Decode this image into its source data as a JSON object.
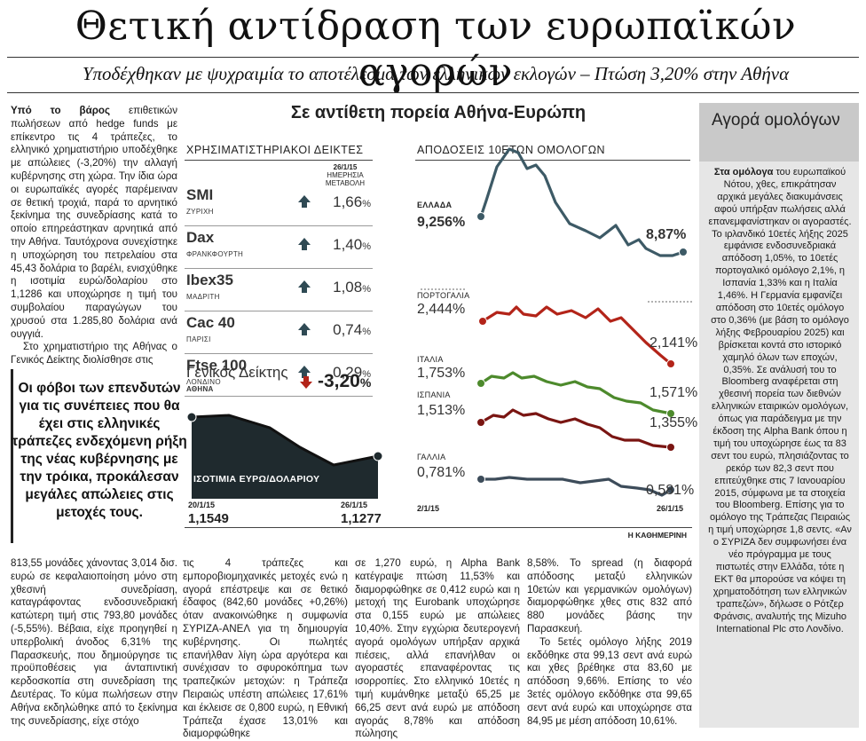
{
  "headline": "Θετική αντίδραση των ευρωπαϊκών αγορών",
  "subheadline": "Υποδέχθηκαν με ψυχραιμία το αποτέλεσμα των ελληνικών εκλογών – Πτώση 3,20% στην Αθήνα",
  "col1": {
    "lead": "Υπό το βάρος",
    "p1": " επιθετικών πωλήσεων από hedge funds με επίκεντρο τις 4 τράπεζες, το ελληνικό χρηματιστήριο υποδέχθηκε με απώλειες (-3,20%) την αλλαγή κυβέρνησης στη χώρα. Την ίδια ώρα οι ευρωπαϊκές αγορές παρέμειναν σε θετική τροχιά, παρά το αρνητικό ξεκίνημα της συνεδρίασης κατά το οποίο επηρεάστηκαν αρνητικά από την Αθήνα. Ταυτόχρονα συνεχίστηκε η υποχώρηση του πετρελαίου στα 45,43 δολάρια το βαρέλι, ενισχύθηκε η ισοτιμία ευρώ/δολαρίου στο 1,1286 και υποχώρησε η τιμή του συμβολαίου παραγώγων του χρυσού στα 1.285,80 δολάρια ανά ουγγιά.",
    "p2": "Στο χρηματιστήριο της Αθήνας ο Γενικός Δείκτης διολίσθησε στις"
  },
  "pullquote": "Οι φόβοι των επενδυτών για τις συνέπειες που θα έχει στις ελληνικές τράπεζες ενδεχόμενη ρήξη της νέας κυβέρνησης με την τρόικα, προκάλεσαν μεγάλες απώλειες στις μετοχές τους.",
  "col1_bottom": "813,55 μονάδες χάνοντας 3,014 δισ. ευρώ σε κεφαλαιοποίηση μόνο στη χθεσινή συνεδρίαση, καταγράφοντας ενδοσυνεδριακή κατώτερη τιμή στις 793,80 μονάδες (-5,55%). Βέβαια, είχε προηγηθεί η υπερβολική άνοδος 6,31% της Παρασκευής, που δημιούργησε τις προϋποθέσεις για άνταπιντική κερδοσκοπία στη συνεδρίαση της Δευτέρας. Το κύμα πωλήσεων στην Αθήνα εκδηλώθηκε από το ξεκίνημα της συνεδρίασης, είχε στόχο",
  "col2_bottom": "τις 4 τράπεζες και εμπορoβιομηχανικές μετοχές ενώ η αγορά επέστρεψε και σε θετικό έδαφος (842,60 μονάδες +0,26%) όταν ανακοινώθηκε η συμφωνία ΣΥΡΙΖΑ-ΑΝΕΛ για τη δημιουργία κυβέρνησης. Οι πωλητές επανήλθαν λίγη ώρα αργότερα και συνέχισαν το σφυροκόπημα των τραπεζικών μετοχών: η Τράπεζα Πειραιώς υπέστη απώλειες 17,61% και έκλεισε σε 0,800 ευρώ, η Εθνική Τράπεζα έχασε 13,01% και διαμορφώθηκε",
  "col3_bottom": "σε 1,270 ευρώ, η Alpha Bank κατέγραψε πτώση 11,53% και διαμορφώθηκε σε 0,412 ευρώ και η μετοχή της Eurobank υποχώρησε στα 0,155 ευρώ με απώλειες 10,40%. Στην εγχώρια δευτερογενή αγορά ομολόγων υπήρξαν αρχικά πιέσεις, αλλά επανήλθαν οι αγοραστές επαναφέροντας τις ισορροπίες. Στο ελληνικό 10ετές η τιμή κυμάνθηκε μεταξύ 65,25 με 66,25 σεντ ανά ευρώ με απόδοση αγοράς 8,78% και απόδοση πώλησης",
  "col4_bottom": "8,58%. Το spread (η διαφορά απόδοσης μεταξύ ελληνικών 10ετών και γερμανικών ομολόγων) διαμορφώθηκε χθες στις 832 από 880 μονάδες βάσης την Παρασκευή.",
  "col4_bottom_2": "Το 5ετές ομόλογο λήξης 2019 εκδόθηκε στα 99,13 σεντ ανά ευρώ και χθες βρέθηκε στα 83,60 με απόδοση 9,66%. Επίσης το νέο 3ετές ομόλογο εκδόθηκε στα 99,65 σεντ ανά ευρώ και υποχώρησε στα 84,95 με μέση απόδοση 10,61%.",
  "graphic": {
    "title": "Σε αντίθετη πορεία Αθήνα-Ευρώπη",
    "indices_header": "ΧΡΗΣΙΜΑΤΙΣΤΗΡΙΑΚΟΙ ΔΕΙΚΤΕΣ",
    "bonds_header": "ΑΠΟΔΟΣΕΙΣ 10ΕΤΩΝ ΟΜΟΛΟΓΩΝ",
    "date_label_1": "26/1/15",
    "date_label_2": "ΗΜΕΡΗΣΙΑ",
    "date_label_3": "ΜΕΤΑΒΟΛΗ",
    "indices": [
      {
        "name": "SMI",
        "city": "ΖΥΡΙΧΗ",
        "value": "1,66",
        "unit": "%",
        "direction": "up"
      },
      {
        "name": "Dax",
        "city": "ΦΡΑΝΚΦΟΥΡΤΗ",
        "value": "1,40",
        "unit": "%",
        "direction": "up"
      },
      {
        "name": "Ibex35",
        "city": "ΜΑΔΡΙΤΗ",
        "value": "1,08",
        "unit": "%",
        "direction": "up"
      },
      {
        "name": "Cac 40",
        "city": "ΠΑΡΙΣΙ",
        "value": "0,74",
        "unit": "%",
        "direction": "up"
      },
      {
        "name": "Ftse 100",
        "city": "ΛΟΝΔΙΝΟ",
        "value": "0,29",
        "unit": "%",
        "direction": "up"
      }
    ],
    "general_index": {
      "name": "Γενικός Δείκτης",
      "city": "ΑΘΗΝΑ",
      "value": "-3,20",
      "unit": "%",
      "direction": "down"
    },
    "fx": {
      "label": "ΙΣΟΤΙΜΙΑ ΕΥΡΩ/ΔΟΛΑΡΙΟΥ",
      "start_date": "20/1/15",
      "start_value": "1,1549",
      "end_date": "26/1/15",
      "end_value": "1,1277"
    },
    "bonds": [
      {
        "country": "ΕΛΛΑΔΑ",
        "start": "9,256%",
        "end": "8,87%",
        "color": "#3d5a66"
      },
      {
        "country": "ΠΟΡΤΟΓΑΛΙΑ",
        "start": "2,444%",
        "end": "2,141%",
        "color": "#b32419"
      },
      {
        "country": "ΙΤΑΛΙΑ",
        "start": "1,753%",
        "end": "1,571%",
        "color": "#4d8a2c"
      },
      {
        "country": "ΙΣΠΑΝΙΑ",
        "start": "1,513%",
        "end": "1,355%",
        "color": "#7a1512"
      },
      {
        "country": "ΓΑΛΛΙΑ",
        "start": "0,781%",
        "end": "0,581%",
        "color": "#3d4c5a"
      }
    ],
    "bond_x_start": "2/1/15",
    "bond_x_end": "26/1/15",
    "source": "Η ΚΑΘΗΜΕΡΙΝΗ"
  },
  "sidebar": {
    "title": "Αγορά ομολόγων",
    "lead": "Στα ομόλογα",
    "text": " του ευρωπαϊκού Νότου, χθες, επικράτησαν αρχικά μεγάλες διακυμάνσεις αφού υπήρξαν πωλήσεις αλλά επανεμφανίστηκαν οι αγοραστές. Το ιρλανδικό 10ετές λήξης 2025 εμφάνισε ενδοσυνεδριακά απόδοση 1,05%, το 10ετές πορτογαλικό ομόλογο 2,1%, η Ισπανία 1,33% και η Ιταλία 1,46%. Η Γερμανία εμφανίζει απόδοση στο 10ετές ομόλογο στο 0,36% (με βάση το ομόλογο λήξης Φεβρουαρίου 2025) και βρίσκεται κοντά στο ιστορικό χαμηλό όλων των εποχών, 0,35%. Σε ανάλυσή του το Bloomberg αναφέρεται στη χθεσινή πορεία των διεθνών ελληνικών εταιρικών ομολόγων, όπως για παράδειγμα με την έκδοση της Alpha Bank όπου η τιμή του υποχώρησε έως τα 83 σεντ του ευρώ, πλησιάζοντας το ρεκόρ των 82,3 σεντ που επιτεύχθηκε στις 7 Ιανουαρίου 2015, σύμφωνα με τα στοιχεία του Bloomberg. Επίσης για το ομόλογο της Τράπεζας Πειραιώς η τιμή υποχώρησε 1,8 σεντς. «Αν ο ΣΥΡΙΖΑ δεν συμφωνήσει ένα νέο πρόγραμμα με τους πιστωτές στην Ελλάδα, τότε η ΕΚΤ θα μπορούσε να κόψει τη χρηματοδότηση των ελληνικών τραπεζών», δήλωσε ο Ρότζερ Φράνσις, αναλυτής της Mizuho International Plc στο Λονδίνο."
  }
}
